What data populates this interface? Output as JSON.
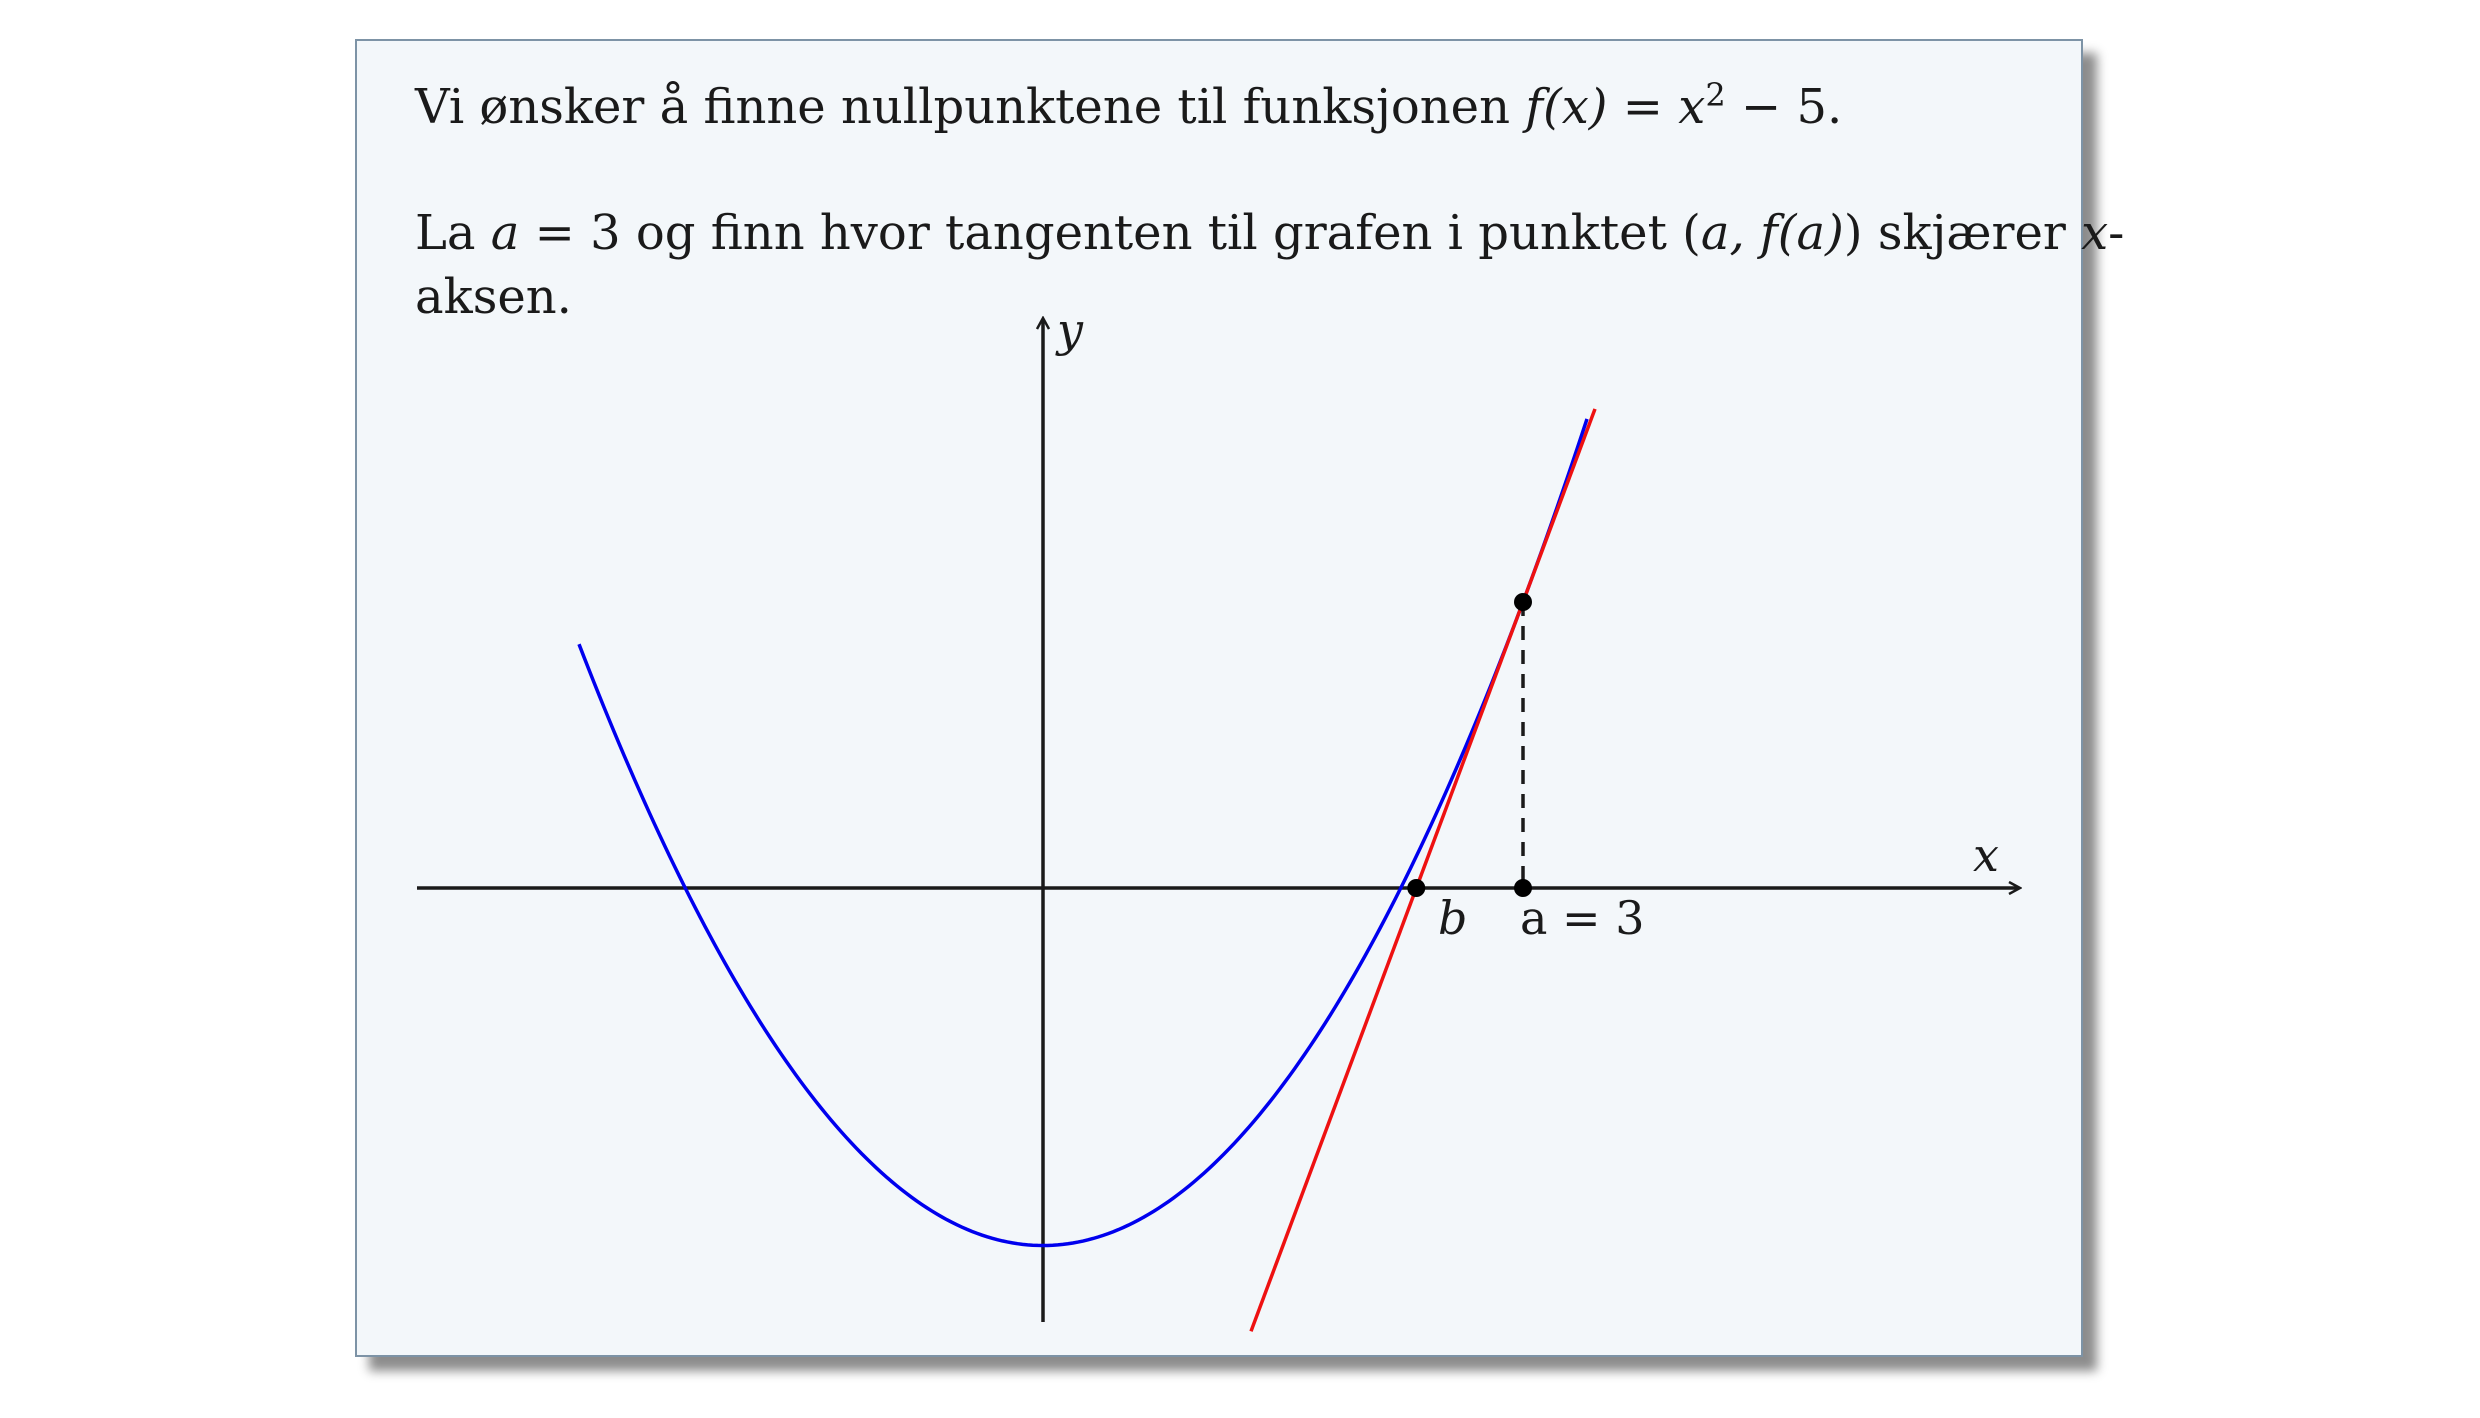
{
  "text": {
    "line1_a": "Vi ønsker å finne nullpunktene til funksjonen ",
    "line1_fx": "f",
    "line1_paren_x": "(x)",
    "line1_eq": " = ",
    "line1_x": "x",
    "line1_exp": "2",
    "line1_tail": " − 5.",
    "line2_a": "La ",
    "line2_avar": "a",
    "line2_b": " = 3 og finn hvor tangenten til grafen i punktet (",
    "line2_point": "a, f(a)",
    "line2_c": ") skjærer ",
    "line2_x": "x",
    "line2_d": "-",
    "line3": "aksen."
  },
  "chart_data": {
    "type": "line",
    "series": [
      {
        "expression": "x^2 - 5",
        "color": "#0000ee",
        "x": [
          -2.9,
          -2,
          -1,
          0,
          1,
          2,
          3,
          3.4
        ],
        "y": [
          3.41,
          -1,
          -4,
          -5,
          -4,
          -1,
          4,
          6.56
        ]
      },
      {
        "expression": "6x - 14",
        "color": "#ee1111",
        "x": [
          1.3,
          3.45
        ],
        "y": [
          -6.2,
          6.7
        ]
      }
    ],
    "points": [
      {
        "x": 3,
        "y": 4
      },
      {
        "x": 2.333,
        "y": 0
      },
      {
        "x": 3,
        "y": 0
      }
    ],
    "xlim": [
      -3.5,
      5.5
    ],
    "ylim": [
      -6.2,
      7.2
    ],
    "labels": {
      "x_axis": "x",
      "y_axis": "y",
      "b": "b",
      "a_eq": "a",
      "a_val": " = 3"
    }
  }
}
